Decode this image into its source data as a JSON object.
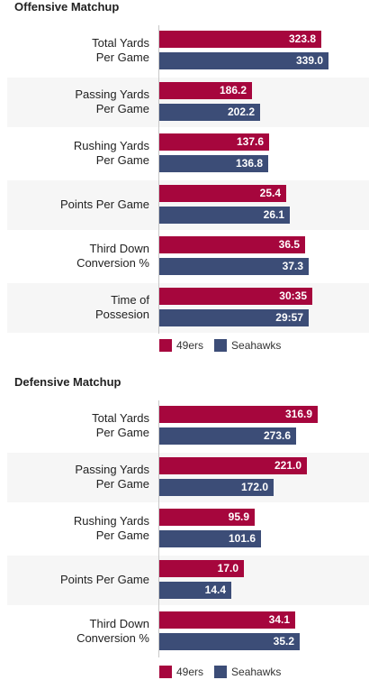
{
  "colors": {
    "team_a": "#a6063d",
    "team_b": "#3c4d77"
  },
  "legend": {
    "team_a": "49ers",
    "team_b": "Seahawks"
  },
  "chart_data": [
    {
      "type": "bar",
      "title": "Offensive Matchup",
      "xlim": [
        0,
        400
      ],
      "categories": [
        "Total Yards\nPer Game",
        "Passing Yards\nPer Game",
        "Rushing Yards\nPer Game",
        "Points Per Game",
        "Third Down\nConversion %",
        "Time of\nPossesion"
      ],
      "series": [
        {
          "name": "49ers",
          "values": [
            323.8,
            186.2,
            137.6,
            25.4,
            36.5,
            30.58
          ],
          "labels": [
            "323.8",
            "186.2",
            "137.6",
            "25.4",
            "36.5",
            "30:35"
          ]
        },
        {
          "name": "Seahawks",
          "values": [
            339.0,
            202.2,
            136.8,
            26.1,
            37.3,
            29.95
          ],
          "labels": [
            "339.0",
            "202.2",
            "136.8",
            "26.1",
            "37.3",
            "29:57"
          ]
        }
      ],
      "scales": [
        400,
        400,
        250,
        40,
        50,
        40
      ]
    },
    {
      "type": "bar",
      "title": "Defensive Matchup",
      "xlim": [
        0,
        400
      ],
      "categories": [
        "Total Yards\nPer Game",
        "Passing Yards\nPer Game",
        "Rushing Yards\nPer Game",
        "Points Per Game",
        "Third Down\nConversion %"
      ],
      "series": [
        {
          "name": "49ers",
          "values": [
            316.9,
            221.0,
            95.9,
            17.0,
            34.1
          ],
          "labels": [
            "316.9",
            "221.0",
            "95.9",
            "17.0",
            "34.1"
          ]
        },
        {
          "name": "Seahawks",
          "values": [
            273.6,
            172.0,
            101.6,
            14.4,
            35.2
          ],
          "labels": [
            "273.6",
            "172.0",
            "101.6",
            "14.4",
            "35.2"
          ]
        }
      ],
      "scales": [
        400,
        300,
        200,
        40,
        50
      ]
    }
  ]
}
